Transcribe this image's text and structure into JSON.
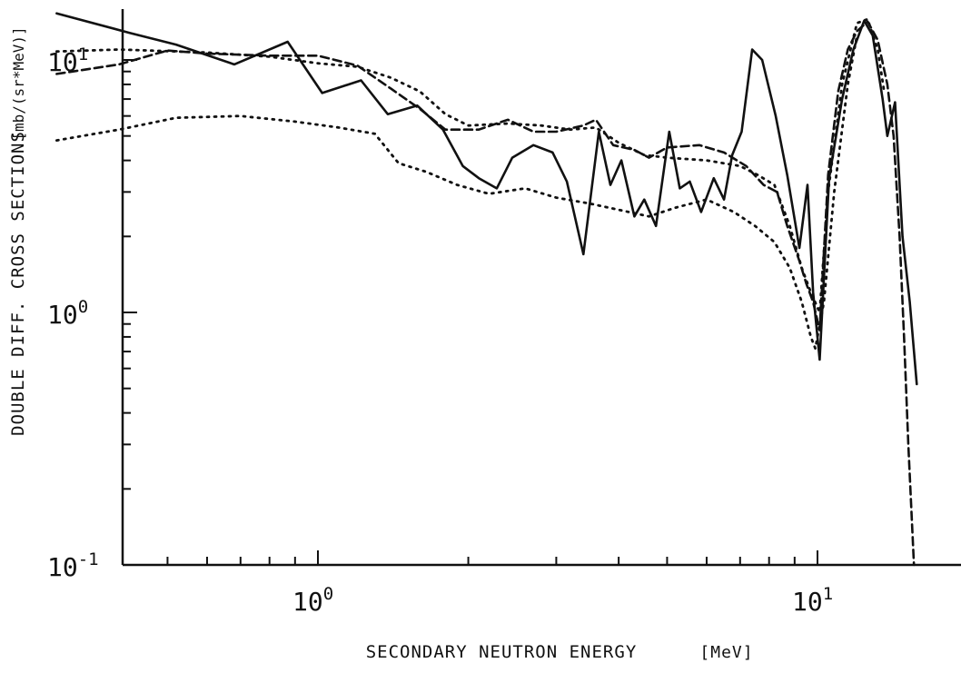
{
  "chart_data": {
    "type": "line",
    "xlabel": "SECONDARY NEUTRON ENERGY",
    "xunit": "[MeV]",
    "ylabel": "DOUBLE DIFF. CROSS SECTIONS",
    "yunit": "[mb/(sr*MeV)]",
    "xscale": "log",
    "yscale": "log",
    "xlim": [
      0.3,
      20
    ],
    "ylim": [
      0.1,
      15
    ],
    "grid": false,
    "legend": "none",
    "x_ticks": [
      {
        "value": 1,
        "base": "10",
        "exp": "0"
      },
      {
        "value": 10,
        "base": "10",
        "exp": "1"
      }
    ],
    "y_ticks": [
      {
        "value": 0.1,
        "base": "10",
        "exp": "-1"
      },
      {
        "value": 1,
        "base": "10",
        "exp": "0"
      },
      {
        "value": 10,
        "base": "10",
        "exp": "1"
      }
    ],
    "series": [
      {
        "style": "solid",
        "points": [
          [
            0.3,
            15.3
          ],
          [
            0.42,
            12.8
          ],
          [
            0.52,
            11.5
          ],
          [
            0.68,
            9.6
          ],
          [
            0.87,
            11.8
          ],
          [
            1.02,
            7.4
          ],
          [
            1.22,
            8.3
          ],
          [
            1.38,
            6.1
          ],
          [
            1.58,
            6.6
          ],
          [
            1.78,
            5.3
          ],
          [
            1.95,
            3.8
          ],
          [
            2.1,
            3.4
          ],
          [
            2.28,
            3.1
          ],
          [
            2.45,
            4.1
          ],
          [
            2.7,
            4.6
          ],
          [
            2.95,
            4.3
          ],
          [
            3.15,
            3.3
          ],
          [
            3.4,
            1.7
          ],
          [
            3.65,
            5.2
          ],
          [
            3.85,
            3.2
          ],
          [
            4.05,
            4.0
          ],
          [
            4.3,
            2.4
          ],
          [
            4.5,
            2.8
          ],
          [
            4.75,
            2.2
          ],
          [
            5.05,
            5.2
          ],
          [
            5.3,
            3.1
          ],
          [
            5.55,
            3.3
          ],
          [
            5.85,
            2.5
          ],
          [
            6.2,
            3.4
          ],
          [
            6.5,
            2.8
          ],
          [
            6.75,
            4.2
          ],
          [
            7.05,
            5.2
          ],
          [
            7.4,
            11.0
          ],
          [
            7.75,
            10.0
          ],
          [
            8.25,
            6.0
          ],
          [
            8.7,
            3.5
          ],
          [
            9.2,
            1.8
          ],
          [
            9.55,
            3.2
          ],
          [
            9.8,
            1.2
          ],
          [
            10.1,
            0.65
          ],
          [
            10.55,
            3.4
          ],
          [
            11.2,
            7.0
          ],
          [
            11.8,
            11.0
          ],
          [
            12.4,
            14.3
          ],
          [
            12.9,
            12.5
          ],
          [
            13.5,
            7.0
          ],
          [
            13.8,
            5.0
          ],
          [
            14.3,
            6.8
          ],
          [
            14.8,
            2.0
          ],
          [
            15.3,
            1.1
          ],
          [
            15.8,
            0.52
          ]
        ]
      },
      {
        "style": "dashed",
        "points": [
          [
            0.3,
            8.8
          ],
          [
            0.4,
            9.6
          ],
          [
            0.5,
            10.9
          ],
          [
            0.6,
            10.6
          ],
          [
            0.8,
            10.4
          ],
          [
            1.0,
            10.4
          ],
          [
            1.2,
            9.5
          ],
          [
            1.4,
            7.7
          ],
          [
            1.6,
            6.4
          ],
          [
            1.8,
            5.3
          ],
          [
            2.1,
            5.3
          ],
          [
            2.4,
            5.8
          ],
          [
            2.7,
            5.2
          ],
          [
            3.0,
            5.2
          ],
          [
            3.4,
            5.5
          ],
          [
            3.6,
            5.8
          ],
          [
            3.9,
            4.6
          ],
          [
            4.3,
            4.4
          ],
          [
            4.6,
            4.1
          ],
          [
            5.0,
            4.5
          ],
          [
            5.8,
            4.6
          ],
          [
            6.5,
            4.3
          ],
          [
            7.2,
            3.8
          ],
          [
            7.8,
            3.2
          ],
          [
            8.3,
            3.0
          ],
          [
            8.7,
            2.2
          ],
          [
            9.2,
            1.6
          ],
          [
            9.5,
            1.3
          ],
          [
            9.8,
            1.1
          ],
          [
            10.1,
            0.85
          ],
          [
            10.5,
            3.5
          ],
          [
            11.0,
            7.5
          ],
          [
            11.5,
            11.0
          ],
          [
            12.0,
            13.0
          ],
          [
            12.6,
            14.2
          ],
          [
            13.2,
            12.0
          ],
          [
            13.8,
            8.0
          ],
          [
            14.2,
            5.0
          ],
          [
            14.6,
            2.0
          ],
          [
            14.9,
            0.8
          ],
          [
            15.2,
            0.3
          ],
          [
            15.6,
            0.1
          ]
        ]
      },
      {
        "style": "dotted",
        "points": [
          [
            0.3,
            10.8
          ],
          [
            0.4,
            11.0
          ],
          [
            0.6,
            10.7
          ],
          [
            0.8,
            10.3
          ],
          [
            1.0,
            9.7
          ],
          [
            1.2,
            9.4
          ],
          [
            1.4,
            8.5
          ],
          [
            1.6,
            7.5
          ],
          [
            1.8,
            6.1
          ],
          [
            2.0,
            5.5
          ],
          [
            2.4,
            5.6
          ],
          [
            2.8,
            5.5
          ],
          [
            3.2,
            5.3
          ],
          [
            3.6,
            5.4
          ],
          [
            4.0,
            4.7
          ],
          [
            4.5,
            4.2
          ],
          [
            5.0,
            4.1
          ],
          [
            6.0,
            4.0
          ],
          [
            7.0,
            3.8
          ],
          [
            7.6,
            3.5
          ],
          [
            8.2,
            3.2
          ],
          [
            8.8,
            2.2
          ],
          [
            9.3,
            1.5
          ],
          [
            9.7,
            1.2
          ],
          [
            10.1,
            1.0
          ],
          [
            10.5,
            3.0
          ],
          [
            11.2,
            8.0
          ],
          [
            12.0,
            14.0
          ],
          [
            12.6,
            14.5
          ],
          [
            13.2,
            11.0
          ],
          [
            13.6,
            7.5
          ]
        ]
      },
      {
        "style": "dotted",
        "points": [
          [
            0.3,
            4.8
          ],
          [
            0.4,
            5.3
          ],
          [
            0.52,
            5.9
          ],
          [
            0.7,
            6.0
          ],
          [
            0.9,
            5.7
          ],
          [
            1.1,
            5.4
          ],
          [
            1.3,
            5.1
          ],
          [
            1.45,
            3.9
          ],
          [
            1.65,
            3.6
          ],
          [
            1.9,
            3.2
          ],
          [
            2.2,
            2.95
          ],
          [
            2.6,
            3.1
          ],
          [
            3.0,
            2.85
          ],
          [
            3.5,
            2.7
          ],
          [
            4.0,
            2.55
          ],
          [
            4.6,
            2.4
          ],
          [
            5.2,
            2.6
          ],
          [
            6.0,
            2.8
          ],
          [
            6.8,
            2.5
          ],
          [
            7.5,
            2.2
          ],
          [
            8.2,
            1.9
          ],
          [
            8.8,
            1.5
          ],
          [
            9.3,
            1.1
          ],
          [
            9.7,
            0.8
          ],
          [
            9.9,
            0.72
          ],
          [
            10.3,
            1.1
          ],
          [
            10.8,
            3.0
          ],
          [
            11.5,
            8.0
          ],
          [
            12.0,
            12.5
          ]
        ]
      }
    ]
  }
}
